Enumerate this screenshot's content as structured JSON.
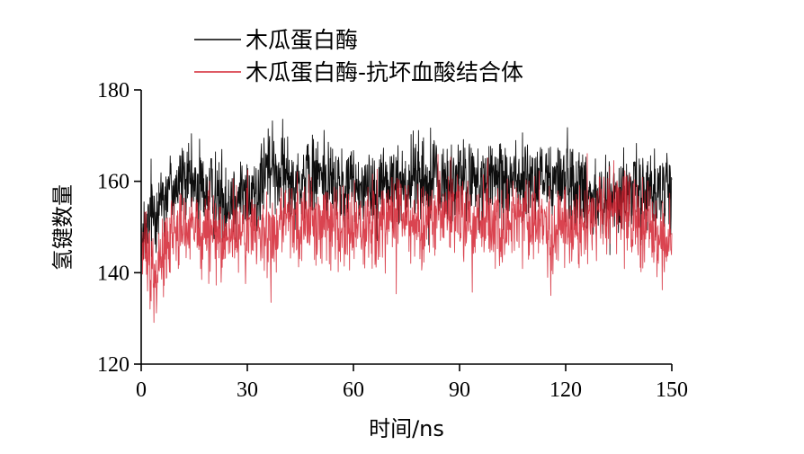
{
  "chart_data": {
    "type": "line",
    "title": "",
    "xlabel": "时间/ns",
    "ylabel": "氢键数量",
    "xlim": [
      0,
      150
    ],
    "ylim": [
      120,
      180
    ],
    "xticks": [
      0,
      30,
      60,
      90,
      120,
      150
    ],
    "yticks": [
      120,
      140,
      160,
      180
    ],
    "xtick_labels": [
      "0",
      "30",
      "60",
      "90",
      "120",
      "150"
    ],
    "ytick_labels": [
      "120",
      "140",
      "160",
      "180"
    ],
    "grid": false,
    "legend_position": "top-left",
    "series": [
      {
        "name": "木瓜蛋白酶",
        "color": "#000000",
        "x": [
          0,
          3,
          6,
          9,
          12,
          15,
          18,
          21,
          24,
          27,
          30,
          33,
          36,
          39,
          42,
          45,
          48,
          51,
          54,
          57,
          60,
          63,
          66,
          69,
          72,
          75,
          78,
          81,
          84,
          87,
          90,
          93,
          96,
          99,
          102,
          105,
          108,
          111,
          114,
          117,
          120,
          123,
          126,
          129,
          132,
          135,
          138,
          141,
          144,
          147,
          150
        ],
        "values": [
          144,
          153,
          157,
          159,
          160,
          159,
          158,
          157,
          156,
          157,
          157,
          158,
          163,
          162,
          161,
          160,
          161,
          162,
          160,
          158,
          160,
          159,
          159,
          160,
          159,
          160,
          161,
          160,
          160,
          159,
          161,
          160,
          159,
          160,
          160,
          161,
          160,
          159,
          161,
          160,
          161,
          159,
          158,
          157,
          155,
          157,
          158,
          157,
          158,
          159,
          157
        ]
      },
      {
        "name": "木瓜蛋白酶-抗坏血酸结合体",
        "color": "#d42331",
        "x": [
          0,
          3,
          6,
          9,
          12,
          15,
          18,
          21,
          24,
          27,
          30,
          33,
          36,
          39,
          42,
          45,
          48,
          51,
          54,
          57,
          60,
          63,
          66,
          69,
          72,
          75,
          78,
          81,
          84,
          87,
          90,
          93,
          96,
          99,
          102,
          105,
          108,
          111,
          114,
          117,
          120,
          123,
          126,
          129,
          132,
          135,
          138,
          141,
          144,
          147,
          150
        ],
        "values": [
          146,
          141,
          145,
          148,
          150,
          149,
          149,
          148,
          148,
          149,
          150,
          149,
          148,
          150,
          150,
          151,
          152,
          151,
          150,
          149,
          150,
          151,
          150,
          151,
          152,
          152,
          151,
          152,
          153,
          152,
          153,
          152,
          151,
          150,
          150,
          151,
          152,
          151,
          150,
          149,
          150,
          150,
          151,
          152,
          153,
          154,
          153,
          152,
          150,
          147,
          146
        ]
      }
    ]
  }
}
